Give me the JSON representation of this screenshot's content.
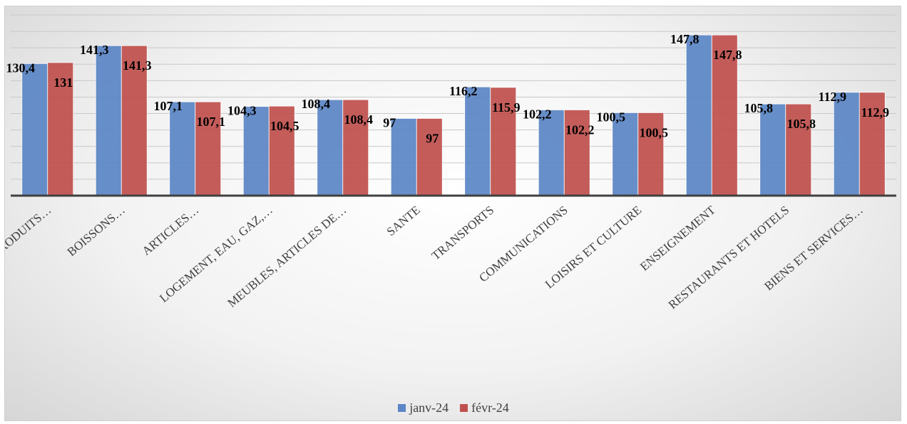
{
  "colors": {
    "series1": "#5b86c5",
    "series2": "#c0504d",
    "grid": "#c8c8c8",
    "axis": "#404040"
  },
  "chart_data": {
    "type": "bar",
    "title": "",
    "xlabel": "",
    "ylabel": "",
    "ylim": [
      50,
      160
    ],
    "grid": true,
    "legend_position": "bottom",
    "categories": [
      "PRODUITS…",
      "BOISSONS…",
      "ARTICLES…",
      "LOGEMENT, EAU, GAZ,…",
      "MEUBLES, ARTICLES DE…",
      "SANTE",
      "TRANSPORTS",
      "COMMUNICATIONS",
      "LOISIRS ET CULTURE",
      "ENSEIGNEMENT",
      "RESTAURANTS ET HOTELS",
      "BIENS ET SERVICES…"
    ],
    "series": [
      {
        "name": "janv-24",
        "values": [
          130.4,
          141.3,
          107.1,
          104.3,
          108.4,
          97,
          116.2,
          102.2,
          100.5,
          147.8,
          105.8,
          112.9
        ],
        "labels": [
          "130,4",
          "141,3",
          "107,1",
          "104,3",
          "108,4",
          "97",
          "116,2",
          "102,2",
          "100,5",
          "147,8",
          "105,8",
          "112,9"
        ]
      },
      {
        "name": "févr-24",
        "values": [
          131,
          141.3,
          107.1,
          104.5,
          108.4,
          97,
          115.9,
          102.2,
          100.5,
          147.8,
          105.8,
          112.9
        ],
        "labels": [
          "131",
          "141,3",
          "107,1",
          "104,5",
          "108,4",
          "97",
          "115,9",
          "102,2",
          "100,5",
          "147,8",
          "105,8",
          "112,9"
        ]
      }
    ]
  }
}
